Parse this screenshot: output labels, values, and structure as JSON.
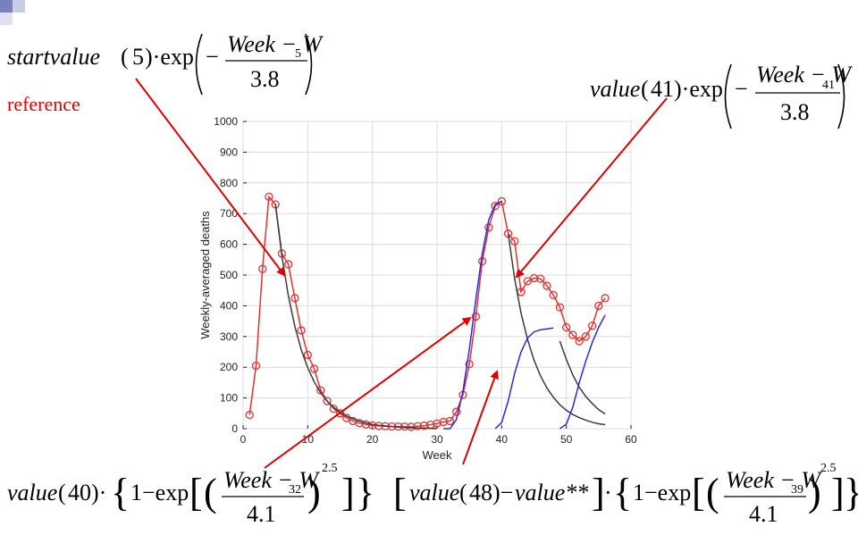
{
  "slide": {
    "reference_label": "reference",
    "accent_colors": {
      "corner_dark": "#7b7fc0",
      "corner_light": "#c9cbe8",
      "annotation": "#e00000"
    }
  },
  "formulas": {
    "top_left": {
      "fn": "startvalue",
      "arg": "5",
      "num": "Week − W",
      "sub": "5",
      "den": "3.8"
    },
    "top_right": {
      "fn": "value",
      "arg": "41",
      "num": "Week − W",
      "sub": "41",
      "den": "3.8"
    },
    "bottom_left": {
      "fn": "value",
      "arg": "40",
      "num": "Week − W",
      "sub": "32",
      "den": "4.1",
      "exp": "2.5"
    },
    "bottom_right": {
      "fn1": "value",
      "arg1": "48",
      "fn2": "value**",
      "num": "Week − W",
      "sub": "39",
      "den": "4.1",
      "exp": "2.5"
    }
  },
  "chart_data": {
    "type": "line",
    "xlabel": "Week",
    "ylabel": "Weekly-averaged deaths",
    "xlim": [
      0,
      60
    ],
    "ylim": [
      0,
      1000
    ],
    "xticks": [
      0,
      10,
      20,
      30,
      40,
      50,
      60
    ],
    "yticks": [
      0,
      100,
      200,
      300,
      400,
      500,
      600,
      700,
      800,
      900,
      1000
    ],
    "grid": true,
    "series": [
      {
        "color": "#e53030",
        "marker": "circle",
        "x": [
          1,
          2,
          3,
          4,
          5,
          6,
          7,
          8,
          9,
          10,
          11,
          12,
          13,
          14,
          15,
          16,
          17,
          18,
          19,
          20,
          21,
          22,
          23,
          24,
          25,
          26,
          27,
          28,
          29,
          30,
          31,
          32,
          33,
          34,
          35,
          36,
          37,
          38,
          39,
          40,
          41,
          42,
          43,
          44,
          45,
          46,
          47,
          48,
          49,
          50,
          51,
          52,
          53,
          54,
          55,
          56
        ],
        "y": [
          45,
          205,
          520,
          755,
          730,
          570,
          535,
          425,
          320,
          240,
          195,
          125,
          90,
          65,
          50,
          35,
          25,
          18,
          14,
          11,
          9,
          8,
          7,
          7,
          7,
          6,
          8,
          10,
          13,
          17,
          22,
          25,
          55,
          110,
          210,
          365,
          545,
          655,
          725,
          740,
          635,
          610,
          445,
          480,
          490,
          488,
          465,
          435,
          395,
          330,
          305,
          285,
          300,
          335,
          400,
          425
        ]
      },
      {
        "color": "#3a3a3a",
        "x": [
          5,
          6,
          7,
          8,
          9,
          10,
          11,
          12,
          13,
          14,
          15,
          16,
          17,
          18,
          19,
          20,
          21,
          22,
          23,
          24,
          25,
          26,
          27,
          28,
          29,
          30
        ],
        "y": [
          730,
          562,
          433,
          333,
          257,
          198,
          152,
          117,
          90,
          70,
          54,
          41,
          32,
          24,
          19,
          14,
          11,
          9,
          7,
          5,
          4,
          3,
          2,
          2,
          1,
          1
        ]
      },
      {
        "color": "#2a2ae0",
        "x": [
          31,
          32,
          33,
          34,
          35,
          36,
          37,
          38,
          39,
          40
        ],
        "y": [
          0,
          0,
          30,
          120,
          260,
          420,
          570,
          680,
          730,
          740
        ]
      },
      {
        "color": "#3a3a3a",
        "x": [
          41,
          42,
          43,
          44,
          45,
          46,
          47,
          48,
          49,
          50,
          51,
          52,
          53,
          54,
          55,
          56
        ],
        "y": [
          635,
          489,
          376,
          290,
          223,
          172,
          132,
          102,
          78,
          60,
          46,
          36,
          28,
          21,
          16,
          13
        ]
      },
      {
        "color": "#2a2ae0",
        "x": [
          39,
          40,
          41,
          42,
          43,
          44,
          45,
          46,
          47,
          48
        ],
        "y": [
          0,
          20,
          90,
          180,
          250,
          295,
          315,
          322,
          325,
          328
        ]
      },
      {
        "color": "#3a3a3a",
        "x": [
          49,
          50,
          51,
          52,
          53,
          54,
          55,
          56
        ],
        "y": [
          285,
          225,
          175,
          135,
          105,
          82,
          62,
          48
        ]
      },
      {
        "color": "#2a2ae0",
        "x": [
          49,
          50,
          51,
          52,
          53,
          54,
          55,
          56
        ],
        "y": [
          0,
          15,
          70,
          150,
          220,
          280,
          330,
          370
        ]
      }
    ]
  }
}
